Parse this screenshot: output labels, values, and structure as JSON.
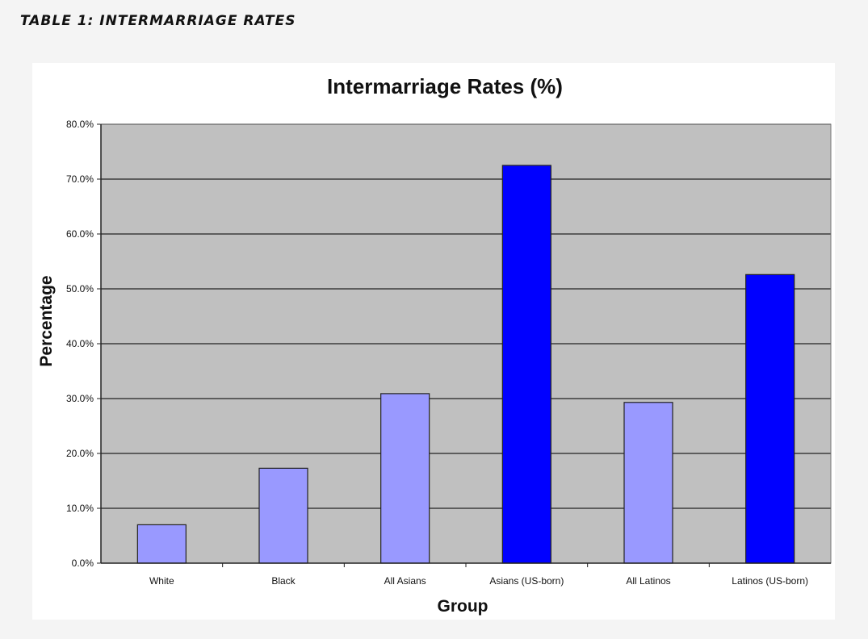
{
  "page": {
    "heading": "TABLE 1: INTERMARRIAGE RATES"
  },
  "colors": {
    "plot_background": "#c0c0c0",
    "gridline": "#222222",
    "bar_light": "#9999ff",
    "bar_dark": "#0000ff",
    "bar_border": "#222222"
  },
  "chart_data": {
    "type": "bar",
    "title": "Intermarriage Rates (%)",
    "xlabel": "Group",
    "ylabel": "Percentage",
    "categories": [
      "White",
      "Black",
      "All Asians",
      "Asians (US-born)",
      "All Latinos",
      "Latinos (US-born)"
    ],
    "values": [
      7.0,
      17.3,
      30.9,
      72.5,
      29.3,
      52.6
    ],
    "bar_colors": [
      "#9999ff",
      "#9999ff",
      "#9999ff",
      "#0000ff",
      "#9999ff",
      "#0000ff"
    ],
    "ylim": [
      0,
      80
    ],
    "yticks": [
      "0.0%",
      "10.0%",
      "20.0%",
      "30.0%",
      "40.0%",
      "50.0%",
      "60.0%",
      "70.0%",
      "80.0%"
    ],
    "grid": true,
    "legend": "none"
  }
}
